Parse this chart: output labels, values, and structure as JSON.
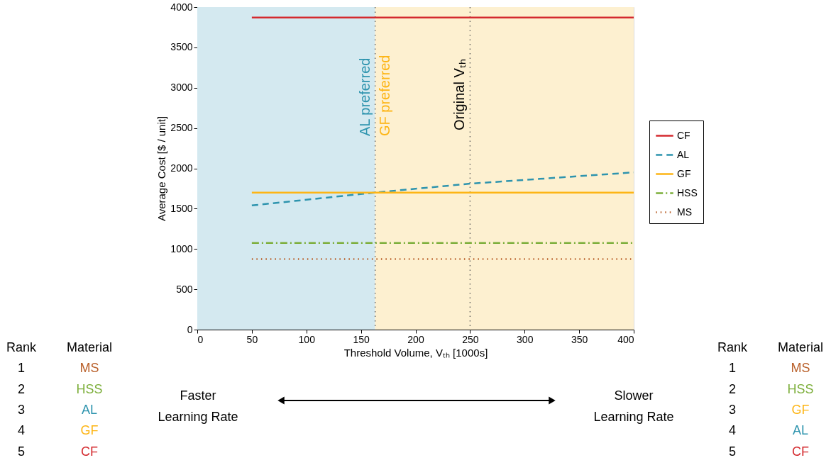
{
  "chart_data": {
    "type": "line",
    "xlabel": "Threshold Volume, Vₜₕ [1000s]",
    "ylabel": "Average Cost [$ / unit]",
    "x": [
      50,
      400
    ],
    "series": [
      {
        "name": "CF",
        "color": "#d42a2f",
        "line_style": "solid",
        "values": [
          3870,
          3870
        ]
      },
      {
        "name": "AL",
        "color": "#2e94ae",
        "line_style": "dashed",
        "x": [
          50,
          163,
          250,
          400
        ],
        "values": [
          1540,
          1700,
          1810,
          1950
        ]
      },
      {
        "name": "GF",
        "color": "#fdb515",
        "line_style": "solid",
        "values": [
          1700,
          1700
        ]
      },
      {
        "name": "HSS",
        "color": "#7cae3a",
        "line_style": "dashdot",
        "values": [
          1075,
          1075
        ]
      },
      {
        "name": "MS",
        "color": "#b9602a",
        "line_style": "dotted",
        "values": [
          875,
          875
        ]
      }
    ],
    "xlim": [
      0,
      400
    ],
    "ylim": [
      0,
      4000
    ],
    "xticks": [
      0,
      50,
      100,
      150,
      200,
      250,
      300,
      350,
      400
    ],
    "yticks": [
      0,
      500,
      1000,
      1500,
      2000,
      2500,
      3000,
      3500,
      4000
    ],
    "bands": [
      {
        "axis": "x",
        "from": 0,
        "to": 163,
        "label": "AL preferred",
        "color": "#d4e9f0"
      },
      {
        "axis": "x",
        "from": 163,
        "to": 400,
        "label": "GF preferred",
        "color": "#fdf0d0"
      }
    ],
    "ref_lines": [
      {
        "axis": "x",
        "value": 163,
        "color": "#555555",
        "line_style": "dotted"
      },
      {
        "axis": "x",
        "value": 250,
        "label": "Original Vₜₕ",
        "color": "#555555",
        "line_style": "dotted"
      }
    ],
    "annotations": [
      "Rank",
      "Material",
      "1",
      "MS",
      "2",
      "HSS",
      "3",
      "AL",
      "4",
      "GF",
      "5",
      "CF",
      "Faster Learning Rate",
      "Slower Learning Rate",
      "Rank",
      "Material",
      "1",
      "MS",
      "2",
      "HSS",
      "3",
      "GF",
      "4",
      "AL",
      "5",
      "CF"
    ],
    "legend": "right",
    "grid": false,
    "marker": "none"
  }
}
